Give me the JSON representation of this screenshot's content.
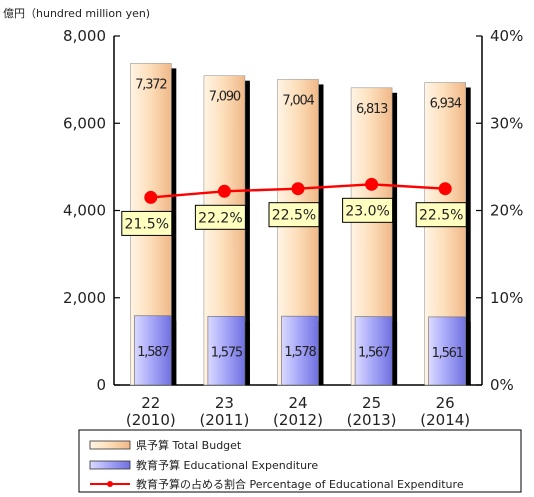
{
  "chart_data": {
    "type": "bar",
    "unit_label": "億円（hundred million yen)",
    "categories": [
      "22",
      "23",
      "24",
      "25",
      "26"
    ],
    "category_years": [
      "(2010)",
      "(2011)",
      "(2012)",
      "(2013)",
      "(2014)"
    ],
    "y_left": {
      "min": 0,
      "max": 8000,
      "ticks": [
        "0",
        "2,000",
        "4,000",
        "6,000",
        "8,000"
      ]
    },
    "y_right": {
      "min": 0,
      "max": 40,
      "ticks": [
        "0%",
        "10%",
        "20%",
        "30%",
        "40%"
      ]
    },
    "series": [
      {
        "name": "県予算 Total Budget",
        "type": "bar",
        "axis": "left",
        "values": [
          7372,
          7090,
          7004,
          6813,
          6934
        ],
        "labels": [
          "7,372",
          "7,090",
          "7,004",
          "6,813",
          "6,934"
        ],
        "color": "#fcd8b0"
      },
      {
        "name": "教育予算 Educational Expenditure",
        "type": "bar",
        "axis": "left",
        "values": [
          1587,
          1575,
          1578,
          1567,
          1561
        ],
        "labels": [
          "1,587",
          "1,575",
          "1,578",
          "1,567",
          "1,561"
        ],
        "color": "#a8a8f8"
      },
      {
        "name": "教育予算の占める割合 Percentage of Educational Expenditure",
        "type": "line",
        "axis": "right",
        "values": [
          21.5,
          22.2,
          22.5,
          23.0,
          22.5
        ],
        "labels": [
          "21.5%",
          "22.2%",
          "22.5%",
          "23.0%",
          "22.5%"
        ],
        "color": "#ff0000"
      }
    ],
    "legend_position": "bottom",
    "grid": false
  }
}
